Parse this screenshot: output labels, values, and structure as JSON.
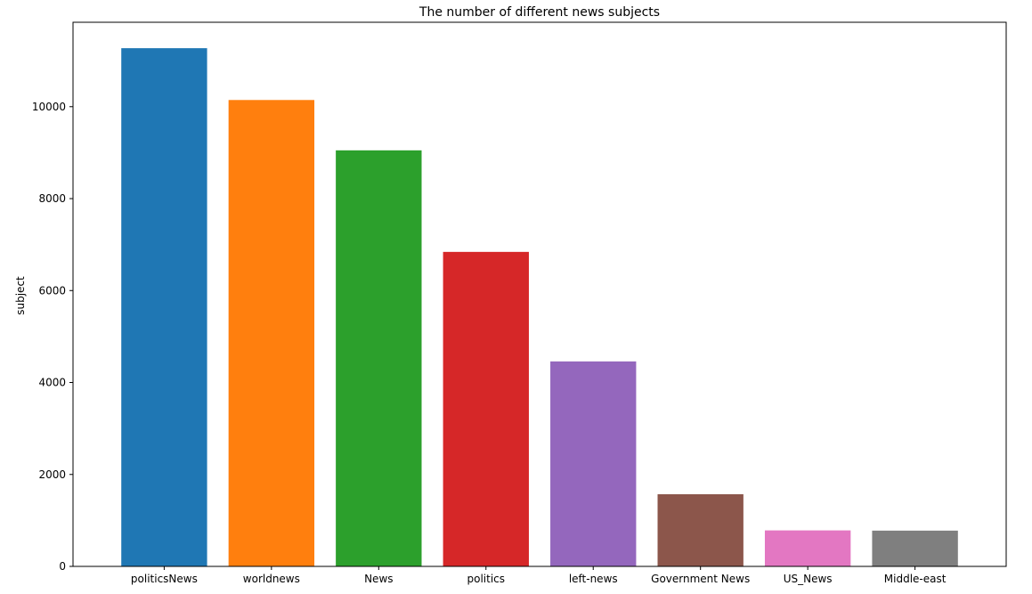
{
  "chart_data": {
    "type": "bar",
    "title": "The number of different news subjects",
    "xlabel": "",
    "ylabel": "subject",
    "categories": [
      "politicsNews",
      "worldnews",
      "News",
      "politics",
      "left-news",
      "Government News",
      "US_News",
      "Middle-east"
    ],
    "values": [
      11272,
      10145,
      9050,
      6841,
      4459,
      1570,
      783,
      778
    ],
    "colors": [
      "#1f77b4",
      "#ff7f0e",
      "#2ca02c",
      "#d62728",
      "#9467bd",
      "#8c564b",
      "#e377c2",
      "#7f7f7f"
    ],
    "ylim": [
      0,
      11836
    ],
    "yticks": [
      0,
      2000,
      4000,
      6000,
      8000,
      10000
    ],
    "grid": false,
    "legend": "none"
  }
}
